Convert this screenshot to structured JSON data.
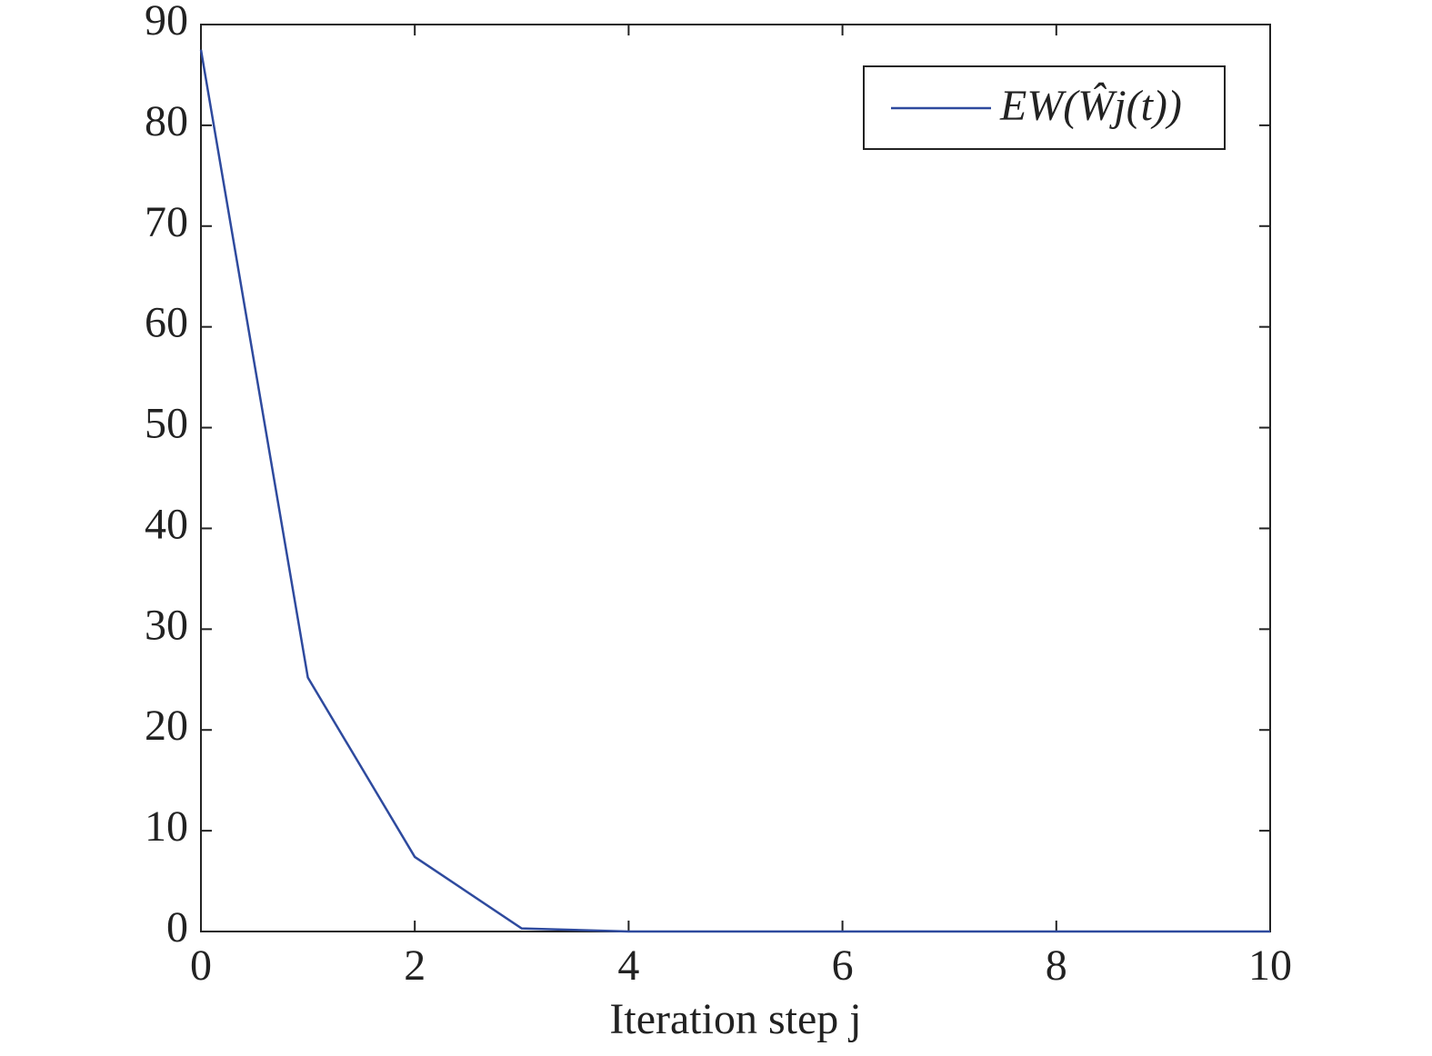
{
  "chart_data": {
    "type": "line",
    "xlabel": "Iteration step j",
    "x": [
      0,
      1,
      2,
      3,
      4,
      5,
      6,
      7,
      8,
      9,
      10
    ],
    "series": [
      {
        "name": "EW(Ŵj(t))",
        "color": "#2e4a9e",
        "values": [
          87.5,
          25.2,
          7.4,
          0.3,
          0,
          0,
          0,
          0,
          0,
          0,
          0
        ]
      }
    ],
    "xlim": [
      0,
      10
    ],
    "xticks": [
      0,
      2,
      4,
      6,
      8,
      10
    ],
    "ylim": [
      0,
      90
    ],
    "yticks": [
      0,
      10,
      20,
      30,
      40,
      50,
      60,
      70,
      80,
      90
    ],
    "grid": false,
    "legend": "upper right"
  }
}
